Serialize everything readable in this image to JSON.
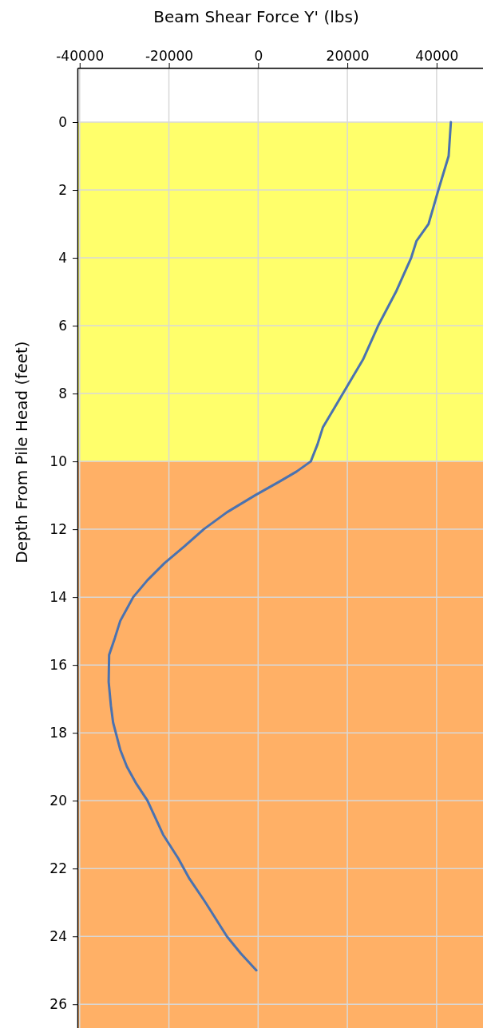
{
  "chart_data": {
    "type": "line",
    "xlabel": "Beam Shear Force Y' (lbs)",
    "ylabel": "Depth From Pile Head (feet)",
    "xlim": [
      -40500,
      50400
    ],
    "xticks": [
      -40000,
      -20000,
      0,
      20000,
      40000
    ],
    "ylim": [
      26.7,
      -1.6
    ],
    "yticks": [
      0,
      2,
      4,
      6,
      8,
      10,
      12,
      14,
      16,
      18,
      20,
      22,
      24,
      26
    ],
    "grid": true,
    "marker": "none",
    "line_style": "solid",
    "bands": [
      {
        "axis": "y",
        "from": 0,
        "to": 10,
        "color": "#ffff6b"
      },
      {
        "axis": "y",
        "from": 10,
        "to": 26.7,
        "color": "#ffb066"
      }
    ],
    "series": [
      {
        "color": "#4a72b0",
        "x": [
          43200,
          42700,
          40400,
          38200,
          35500,
          34300,
          30900,
          26900,
          23500,
          19000,
          14500,
          13300,
          11800,
          8600,
          4700,
          -700,
          -7000,
          -12200,
          -16500,
          -21000,
          -24800,
          -28000,
          -30900,
          -32100,
          -33400,
          -33500,
          -33000,
          -32500,
          -30900,
          -29400,
          -27300,
          -24800,
          -21300,
          -17900,
          -15400,
          -11800,
          -7000,
          -3900,
          -400
        ],
        "values": [
          0,
          1,
          2,
          3,
          3.5,
          4,
          5,
          6,
          7,
          8,
          9,
          9.5,
          10,
          10.3,
          10.6,
          11,
          11.5,
          12,
          12.5,
          13,
          13.5,
          14,
          14.7,
          15.2,
          15.7,
          16.5,
          17.2,
          17.7,
          18.5,
          19,
          19.5,
          20,
          21,
          21.7,
          22.3,
          23,
          24,
          24.5,
          25
        ]
      }
    ]
  }
}
